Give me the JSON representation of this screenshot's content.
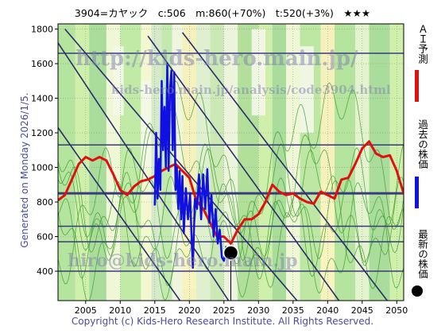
{
  "header": {
    "title": "3904=カヤック　c:506　m:860(+70%)　t:520(+3%)　★★★"
  },
  "footer": {
    "copyright": "Copyright (c) Kids-Hero Research Institute. All Rights Reserved."
  },
  "side_label": "Generated on Monday 2026/1/5.",
  "watermarks": [
    "http://kids-hero.main.jp/",
    "kids-hero.main.jp/analysis/code3904.html",
    "hiro@kids-hero.main.jp"
  ],
  "legend": [
    {
      "label": "ＡＩ予測",
      "color": "#e01010"
    },
    {
      "label": "過去の株価",
      "color": "#1010e0"
    },
    {
      "label": "最新の株価",
      "color": "#000000"
    }
  ],
  "chart_data": {
    "type": "line",
    "xlim": [
      2001,
      2051
    ],
    "ylim": [
      230,
      1830
    ],
    "x_ticks": [
      2005,
      2010,
      2015,
      2020,
      2025,
      2030,
      2035,
      2040,
      2045,
      2050
    ],
    "y_ticks": [
      400,
      600,
      800,
      1000,
      1200,
      1400,
      1600,
      1800
    ],
    "grid": true,
    "horizontal_lines": [
      400,
      570,
      660,
      850,
      1130,
      1660
    ],
    "emphasis_line": 850,
    "diagonal_lines": [
      {
        "p1": [
          2001,
          1720
        ],
        "p2": [
          2026,
          210
        ]
      },
      {
        "p1": [
          2002,
          1800
        ],
        "p2": [
          2036,
          210
        ]
      },
      {
        "p1": [
          2014,
          1760
        ],
        "p2": [
          2042,
          210
        ]
      },
      {
        "p1": [
          2019,
          1780
        ],
        "p2": [
          2049,
          210
        ]
      },
      {
        "p1": [
          2001,
          1230
        ],
        "p2": [
          2019,
          210
        ]
      }
    ],
    "series": [
      {
        "name": "ＡＩ予測",
        "color": "#e01010",
        "points": [
          [
            2001,
            810
          ],
          [
            2002,
            840
          ],
          [
            2003,
            930
          ],
          [
            2004,
            1020
          ],
          [
            2005,
            1060
          ],
          [
            2006,
            1040
          ],
          [
            2007,
            1060
          ],
          [
            2008,
            1040
          ],
          [
            2009,
            960
          ],
          [
            2010,
            870
          ],
          [
            2011,
            840
          ],
          [
            2012,
            890
          ],
          [
            2013,
            920
          ],
          [
            2014,
            930
          ],
          [
            2015,
            950
          ],
          [
            2016,
            980
          ],
          [
            2017,
            1000
          ],
          [
            2018,
            1020
          ],
          [
            2019,
            980
          ],
          [
            2020,
            940
          ],
          [
            2021,
            810
          ],
          [
            2022,
            760
          ],
          [
            2023,
            680
          ],
          [
            2024,
            600
          ],
          [
            2025,
            600
          ],
          [
            2026,
            560
          ],
          [
            2027,
            640
          ],
          [
            2028,
            700
          ],
          [
            2029,
            700
          ],
          [
            2030,
            730
          ],
          [
            2031,
            800
          ],
          [
            2032,
            900
          ],
          [
            2033,
            860
          ],
          [
            2034,
            840
          ],
          [
            2035,
            850
          ],
          [
            2036,
            820
          ],
          [
            2037,
            800
          ],
          [
            2038,
            790
          ],
          [
            2039,
            860
          ],
          [
            2040,
            840
          ],
          [
            2041,
            820
          ],
          [
            2042,
            930
          ],
          [
            2043,
            940
          ],
          [
            2044,
            1020
          ],
          [
            2045,
            1110
          ],
          [
            2046,
            1150
          ],
          [
            2047,
            1080
          ],
          [
            2048,
            1060
          ],
          [
            2049,
            1070
          ],
          [
            2050,
            980
          ],
          [
            2051,
            850
          ]
        ]
      },
      {
        "name": "過去の株価",
        "color": "#1010e0",
        "points": [
          [
            2015.0,
            780
          ],
          [
            2015.2,
            1200
          ],
          [
            2015.4,
            820
          ],
          [
            2015.6,
            1050
          ],
          [
            2015.8,
            870
          ],
          [
            2016.0,
            1500
          ],
          [
            2016.2,
            1100
          ],
          [
            2016.4,
            1350
          ],
          [
            2016.6,
            1000
          ],
          [
            2016.8,
            1600
          ],
          [
            2017.0,
            980
          ],
          [
            2017.2,
            1450
          ],
          [
            2017.4,
            1560
          ],
          [
            2017.6,
            1100
          ],
          [
            2017.8,
            1550
          ],
          [
            2018.0,
            870
          ],
          [
            2018.2,
            1000
          ],
          [
            2018.4,
            760
          ],
          [
            2018.6,
            980
          ],
          [
            2018.8,
            700
          ],
          [
            2019.0,
            950
          ],
          [
            2019.2,
            620
          ],
          [
            2019.5,
            880
          ],
          [
            2019.8,
            700
          ],
          [
            2020.1,
            850
          ],
          [
            2020.3,
            620
          ],
          [
            2020.5,
            420
          ],
          [
            2020.8,
            820
          ],
          [
            2021.1,
            760
          ],
          [
            2021.4,
            960
          ],
          [
            2021.7,
            700
          ],
          [
            2022.0,
            960
          ],
          [
            2022.3,
            760
          ],
          [
            2022.6,
            990
          ],
          [
            2022.9,
            680
          ],
          [
            2023.2,
            840
          ],
          [
            2023.5,
            600
          ],
          [
            2023.8,
            760
          ],
          [
            2024.1,
            560
          ],
          [
            2024.4,
            640
          ],
          [
            2024.7,
            480
          ],
          [
            2025.0,
            460
          ],
          [
            2025.3,
            540
          ],
          [
            2025.6,
            490
          ],
          [
            2025.9,
            530
          ],
          [
            2026.0,
            506
          ]
        ]
      }
    ],
    "latest_point": {
      "name": "最新の株価",
      "x": 2026.0,
      "y": 506,
      "color": "#000000"
    }
  }
}
